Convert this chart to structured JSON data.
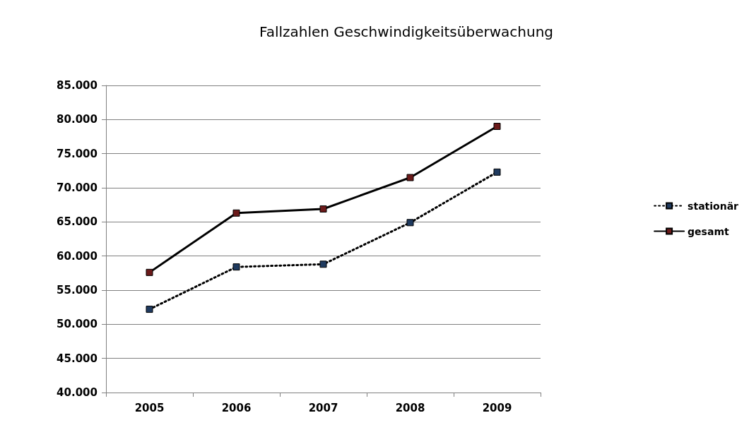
{
  "chart_data": {
    "type": "line",
    "title": "Fallzahlen Geschwindigkeitsüberwachung",
    "categories": [
      "2005",
      "2006",
      "2007",
      "2008",
      "2009"
    ],
    "series": [
      {
        "name": "stationär",
        "color": "#000000",
        "values": [
          52200,
          58400,
          58800,
          64900,
          72300
        ],
        "line_style": "dotted"
      },
      {
        "name": "gesamt",
        "color": "#000000",
        "values": [
          57600,
          66300,
          66900,
          71500,
          79000
        ],
        "line_style": "solid"
      }
    ],
    "ylim": [
      40000,
      85000
    ],
    "yticks": [
      {
        "value": 40000,
        "label": "40.000"
      },
      {
        "value": 45000,
        "label": "45.000"
      },
      {
        "value": 50000,
        "label": "50.000"
      },
      {
        "value": 55000,
        "label": "55.000"
      },
      {
        "value": 60000,
        "label": "60.000"
      },
      {
        "value": 65000,
        "label": "65.000"
      },
      {
        "value": 70000,
        "label": "70.000"
      },
      {
        "value": 75000,
        "label": "75.000"
      },
      {
        "value": 80000,
        "label": "80.000"
      },
      {
        "value": 85000,
        "label": "85.000"
      }
    ],
    "grid": "y",
    "legend": "right",
    "marker": "square"
  }
}
